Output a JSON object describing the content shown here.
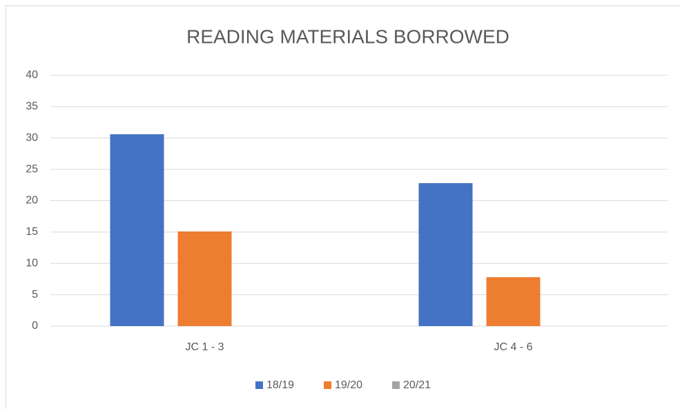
{
  "chart_data": {
    "type": "bar",
    "title": "READING MATERIALS BORROWED",
    "categories": [
      "JC 1 - 3",
      "JC 4 - 6"
    ],
    "series": [
      {
        "name": "18/19",
        "color": "#4472c4",
        "values": [
          30.6,
          22.8
        ]
      },
      {
        "name": "19/20",
        "color": "#ed7d31",
        "values": [
          15.1,
          7.8
        ]
      },
      {
        "name": "20/21",
        "color": "#a5a5a5",
        "values": [
          0,
          0
        ]
      }
    ],
    "ylim": [
      0,
      40
    ],
    "yticks": [
      0,
      5,
      10,
      15,
      20,
      25,
      30,
      35,
      40
    ],
    "grid": true,
    "legend": "bottom"
  }
}
